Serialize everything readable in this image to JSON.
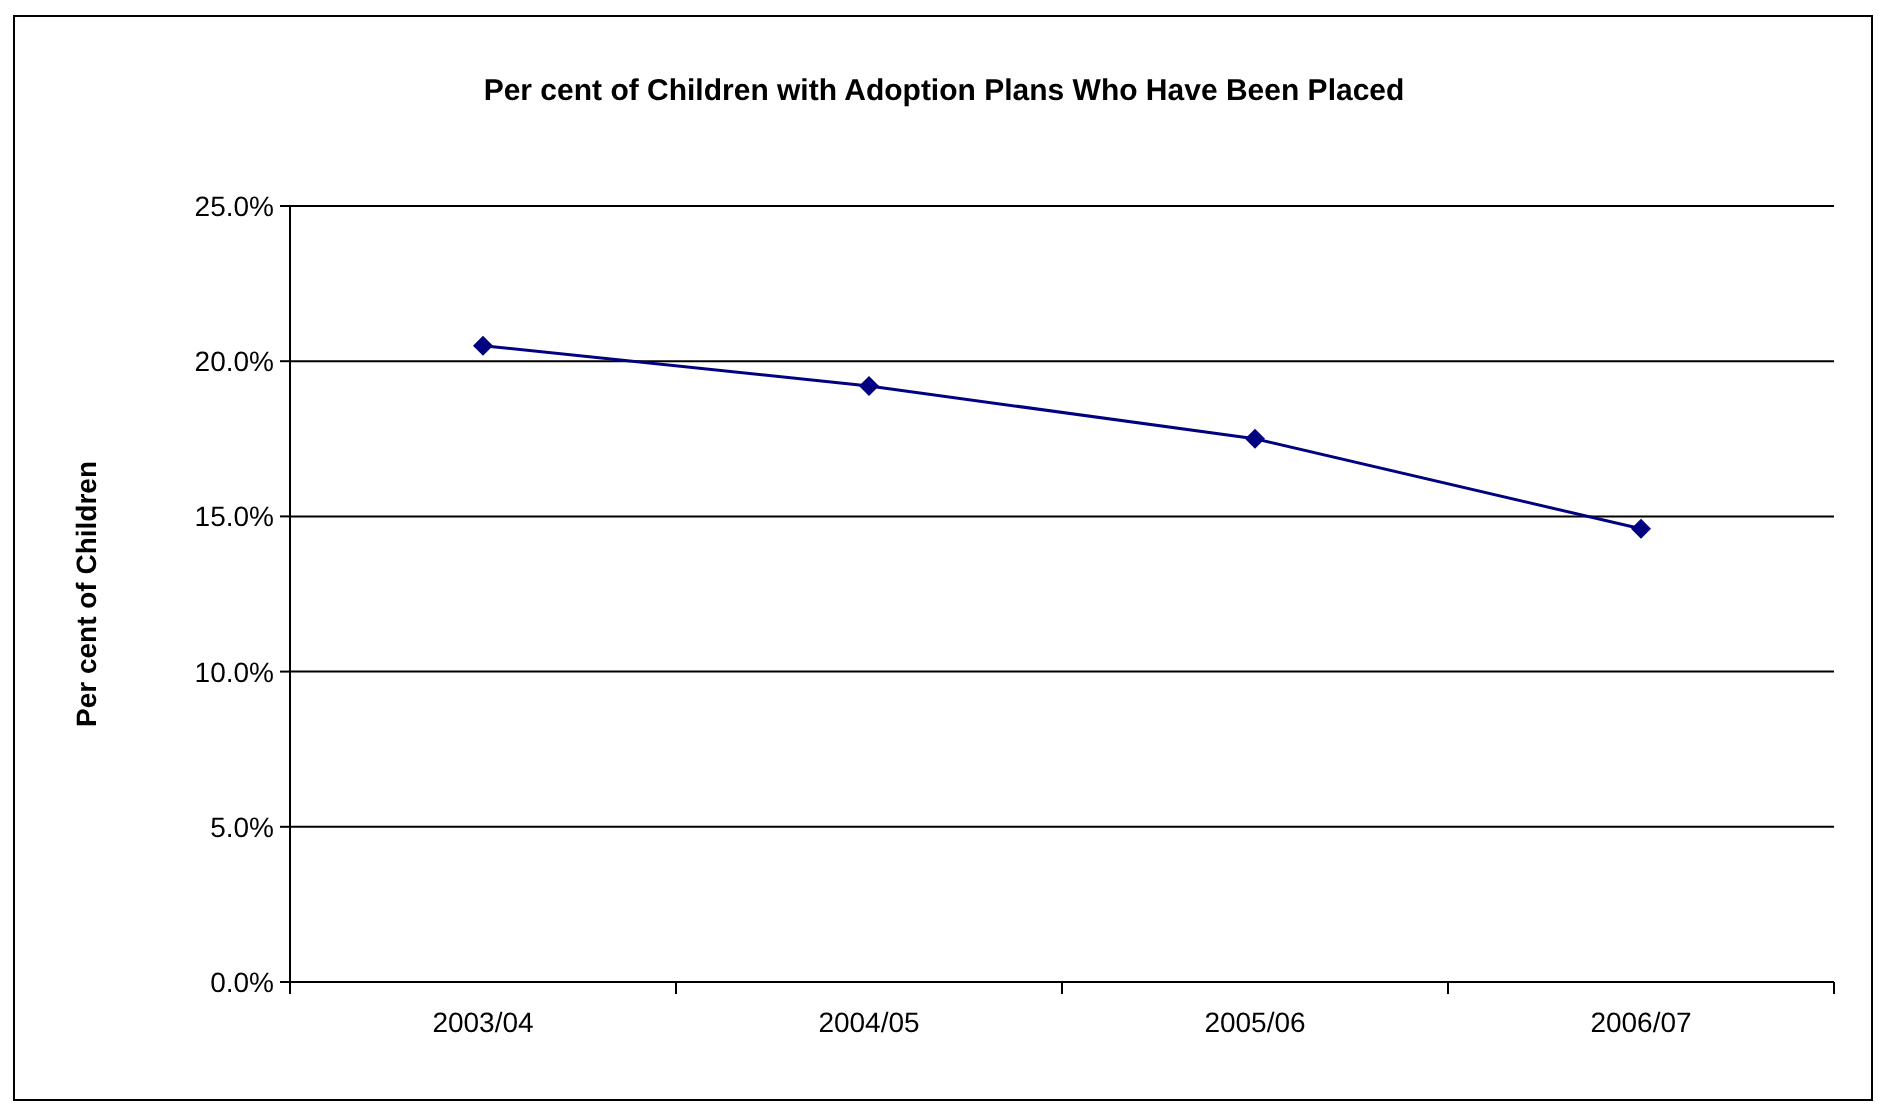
{
  "chart_data": {
    "type": "line",
    "title": "Per cent of Children with Adoption Plans Who Have Been Placed",
    "ylabel": "Per cent of Children",
    "categories": [
      "2003/04",
      "2004/05",
      "2005/06",
      "2006/07"
    ],
    "series": [
      {
        "color": "#000080",
        "values": [
          20.5,
          19.2,
          17.5,
          14.6
        ]
      }
    ],
    "ylim": [
      0,
      25
    ],
    "yticks": [
      {
        "value": 0,
        "label": "0.0%"
      },
      {
        "value": 5,
        "label": "5.0%"
      },
      {
        "value": 10,
        "label": "10.0%"
      },
      {
        "value": 15,
        "label": "15.0%"
      },
      {
        "value": 20,
        "label": "20.0%"
      },
      {
        "value": 25,
        "label": "25.0%"
      }
    ],
    "grid": "y",
    "marker": "diamond",
    "line_style": "solid"
  }
}
